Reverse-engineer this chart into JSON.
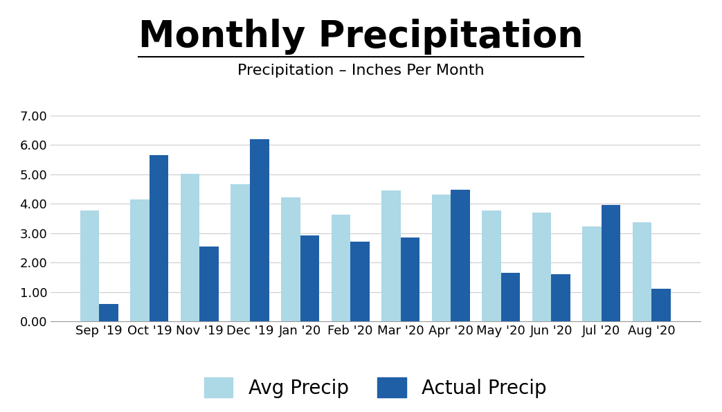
{
  "title": "Monthly Precipitation",
  "subtitle": "Precipitation – Inches Per Month",
  "categories": [
    "Sep '19",
    "Oct '19",
    "Nov '19",
    "Dec '19",
    "Jan '20",
    "Feb '20",
    "Mar '20",
    "Apr '20",
    "May '20",
    "Jun '20",
    "Jul '20",
    "Aug '20"
  ],
  "avg_precip": [
    3.76,
    4.15,
    5.02,
    4.67,
    4.21,
    3.63,
    4.44,
    4.31,
    3.77,
    3.7,
    3.23,
    3.36
  ],
  "actual_precip": [
    0.6,
    5.65,
    2.55,
    6.2,
    2.93,
    2.72,
    2.85,
    4.47,
    1.64,
    1.6,
    3.96,
    1.1
  ],
  "avg_color": "#ADD8E6",
  "actual_color": "#1F5FA6",
  "ylim": [
    0,
    7.0
  ],
  "yticks": [
    0.0,
    1.0,
    2.0,
    3.0,
    4.0,
    5.0,
    6.0,
    7.0
  ],
  "ytick_labels": [
    "0.00",
    "1.00",
    "2.00",
    "3.00",
    "4.00",
    "5.00",
    "6.00",
    "7.00"
  ],
  "background_color": "#ffffff",
  "grid_color": "#cccccc",
  "title_fontsize": 38,
  "subtitle_fontsize": 16,
  "legend_fontsize": 20,
  "tick_fontsize": 13
}
